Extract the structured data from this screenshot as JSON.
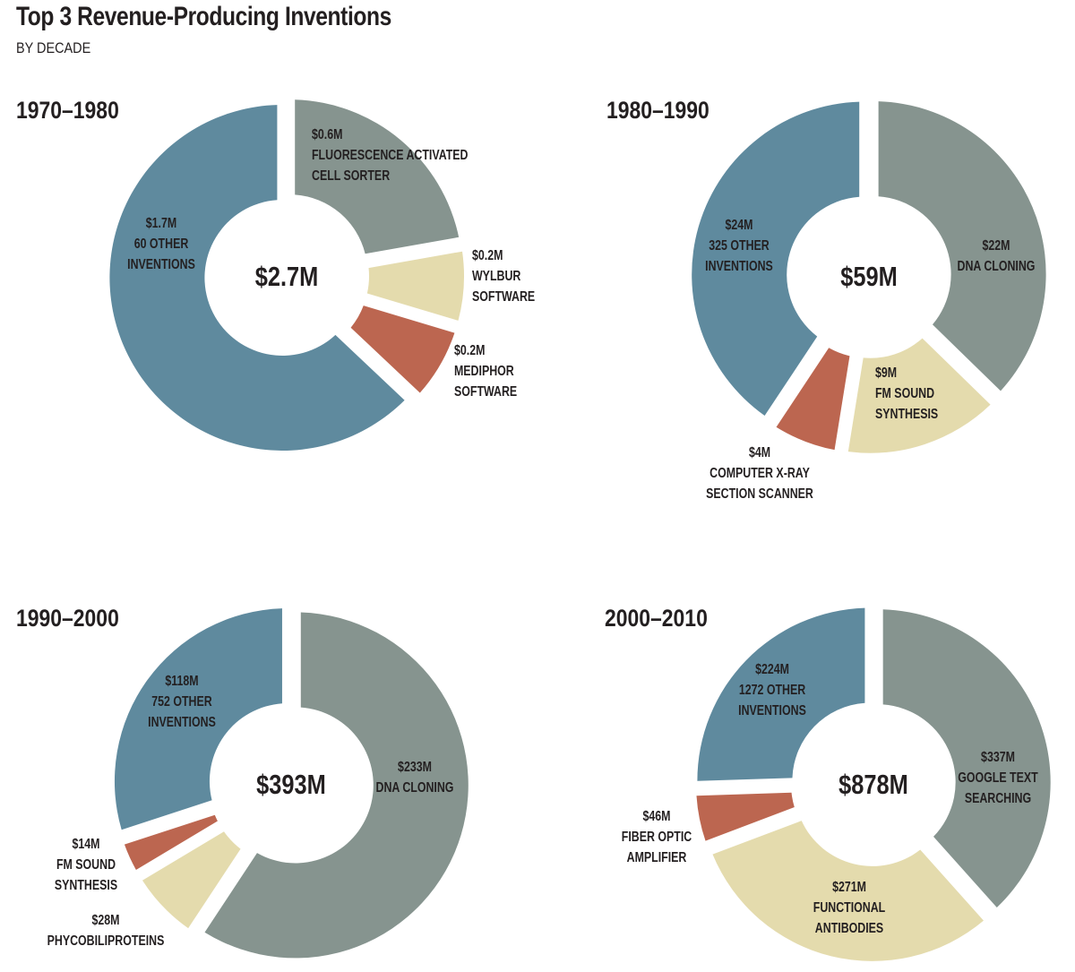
{
  "header": {
    "title": "Top 3 Revenue-Producing Inventions",
    "subtitle": "BY DECADE"
  },
  "colors": {
    "other_inventions": "#5f8a9e",
    "grey": "#86948f",
    "cream": "#e4dbad",
    "red": "#bc6650"
  },
  "chart_data": [
    {
      "type": "pie",
      "decade": "1970–1980",
      "total_label": "$2.7M",
      "slices": [
        {
          "value": 0.6,
          "amount": "$0.6M",
          "name": [
            "FLUORESCENCE ACTIVATED",
            "CELL SORTER"
          ],
          "color": "#86948f"
        },
        {
          "value": 0.2,
          "amount": "$0.2M",
          "name": [
            "WYLBUR",
            "SOFTWARE"
          ],
          "color": "#e4dbad"
        },
        {
          "value": 0.2,
          "amount": "$0.2M",
          "name": [
            "MEDIPHOR",
            "SOFTWARE"
          ],
          "color": "#bc6650"
        },
        {
          "value": 1.7,
          "amount": "$1.7M",
          "name": [
            "60 OTHER",
            "INVENTIONS"
          ],
          "color": "#5f8a9e"
        }
      ]
    },
    {
      "type": "pie",
      "decade": "1980–1990",
      "total_label": "$59M",
      "slices": [
        {
          "value": 22,
          "amount": "$22M",
          "name": [
            "DNA CLONING"
          ],
          "color": "#86948f"
        },
        {
          "value": 9,
          "amount": "$9M",
          "name": [
            "FM SOUND",
            "SYNTHESIS"
          ],
          "color": "#e4dbad"
        },
        {
          "value": 4,
          "amount": "$4M",
          "name": [
            "COMPUTER X-RAY",
            "SECTION SCANNER"
          ],
          "color": "#bc6650"
        },
        {
          "value": 24,
          "amount": "$24M",
          "name": [
            "325 OTHER",
            "INVENTIONS"
          ],
          "color": "#5f8a9e"
        }
      ]
    },
    {
      "type": "pie",
      "decade": "1990–2000",
      "total_label": "$393M",
      "slices": [
        {
          "value": 233,
          "amount": "$233M",
          "name": [
            "DNA CLONING"
          ],
          "color": "#86948f"
        },
        {
          "value": 28,
          "amount": "$28M",
          "name": [
            "PHYCOBILIPROTEINS"
          ],
          "color": "#e4dbad"
        },
        {
          "value": 14,
          "amount": "$14M",
          "name": [
            "FM SOUND",
            "SYNTHESIS"
          ],
          "color": "#bc6650"
        },
        {
          "value": 118,
          "amount": "$118M",
          "name": [
            "752 OTHER",
            "INVENTIONS"
          ],
          "color": "#5f8a9e"
        }
      ]
    },
    {
      "type": "pie",
      "decade": "2000–2010",
      "total_label": "$878M",
      "slices": [
        {
          "value": 337,
          "amount": "$337M",
          "name": [
            "GOOGLE TEXT",
            "SEARCHING"
          ],
          "color": "#86948f"
        },
        {
          "value": 271,
          "amount": "$271M",
          "name": [
            "FUNCTIONAL",
            "ANTIBODIES"
          ],
          "color": "#e4dbad"
        },
        {
          "value": 46,
          "amount": "$46M",
          "name": [
            "FIBER OPTIC",
            "AMPLIFIER"
          ],
          "color": "#bc6650"
        },
        {
          "value": 224,
          "amount": "$224M",
          "name": [
            "1272 OTHER",
            "INVENTIONS"
          ],
          "color": "#5f8a9e"
        }
      ]
    }
  ]
}
